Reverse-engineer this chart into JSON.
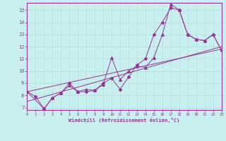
{
  "xlabel": "Windchill (Refroidissement éolien,°C)",
  "bg_color": "#c8f0ee",
  "line_color": "#993399",
  "grid_color": "#b8ddd8",
  "xlim": [
    0,
    23
  ],
  "ylim": [
    6.8,
    15.6
  ],
  "yticks": [
    7,
    8,
    9,
    10,
    11,
    12,
    13,
    14,
    15
  ],
  "xticks": [
    0,
    1,
    2,
    3,
    4,
    5,
    6,
    7,
    8,
    9,
    10,
    11,
    12,
    13,
    14,
    15,
    16,
    17,
    18,
    19,
    20,
    21,
    22,
    23
  ],
  "line1_x": [
    0,
    1,
    2,
    3,
    4,
    5,
    6,
    7,
    8,
    9,
    10,
    11,
    12,
    13,
    14,
    15,
    16,
    17,
    18,
    19,
    20,
    21,
    22,
    23
  ],
  "line1_y": [
    8.3,
    7.9,
    6.9,
    7.8,
    8.2,
    9.0,
    8.3,
    8.3,
    8.4,
    9.0,
    9.4,
    8.5,
    9.5,
    10.5,
    11.0,
    13.0,
    14.0,
    15.2,
    15.0,
    13.0,
    12.6,
    12.5,
    13.0,
    11.7
  ],
  "line2_x": [
    0,
    2,
    3,
    4,
    5,
    6,
    7,
    8,
    9,
    10,
    11,
    12,
    13,
    14,
    15,
    16,
    17,
    18,
    19,
    20,
    21,
    22,
    23
  ],
  "line2_y": [
    8.3,
    6.9,
    7.8,
    8.2,
    8.8,
    8.3,
    8.5,
    8.4,
    8.9,
    11.1,
    9.3,
    10.0,
    10.4,
    10.3,
    11.1,
    13.0,
    15.5,
    15.0,
    13.0,
    12.6,
    12.5,
    13.0,
    11.7
  ],
  "trend1_x": [
    0,
    23
  ],
  "trend1_y": [
    8.3,
    11.8
  ],
  "trend2_x": [
    0,
    23
  ],
  "trend2_y": [
    7.5,
    12.0
  ]
}
